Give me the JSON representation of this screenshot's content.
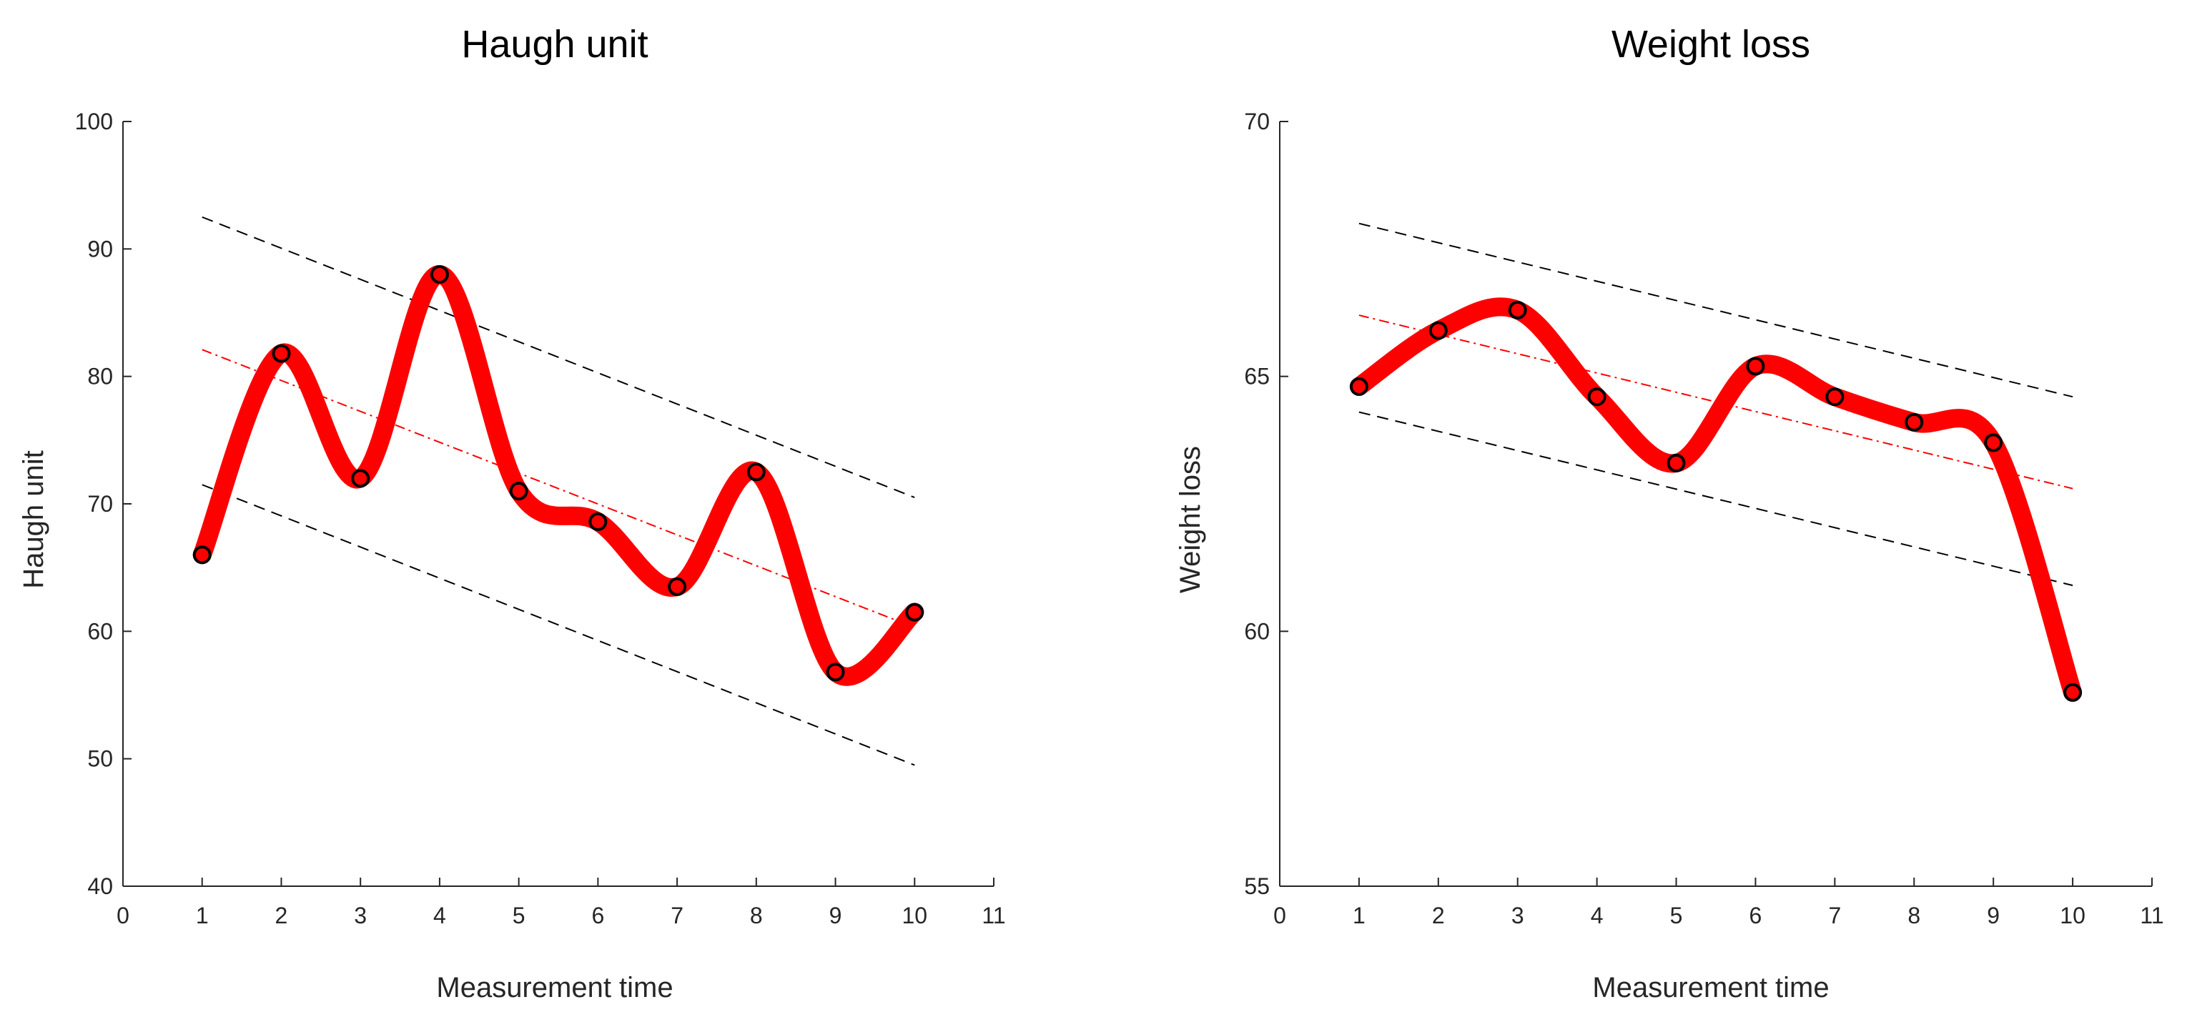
{
  "chart_data": [
    {
      "type": "line",
      "title": "Haugh unit",
      "xlabel": "Measurement time",
      "ylabel": "Haugh unit",
      "xlim": [
        0,
        11
      ],
      "ylim": [
        40,
        100
      ],
      "xticks": [
        0,
        1,
        2,
        3,
        4,
        5,
        6,
        7,
        8,
        9,
        10,
        11
      ],
      "yticks": [
        40,
        50,
        60,
        70,
        80,
        90,
        100
      ],
      "x": [
        1,
        2,
        3,
        4,
        5,
        6,
        7,
        8,
        9,
        10
      ],
      "series": [
        {
          "name": "measured",
          "values": [
            66.0,
            81.8,
            72.0,
            88.0,
            71.0,
            68.6,
            63.5,
            72.5,
            56.8,
            61.5
          ],
          "color": "#ff0000"
        }
      ],
      "fit_line": {
        "name": "linear fit",
        "x": [
          1,
          10
        ],
        "y": [
          82.1,
          60.3
        ],
        "color": "#ff0000"
      },
      "bounds": [
        {
          "name": "upper bound",
          "x": [
            1,
            10
          ],
          "y": [
            92.5,
            70.5
          ],
          "color": "#000000"
        },
        {
          "name": "lower bound",
          "x": [
            1,
            10
          ],
          "y": [
            71.5,
            49.5
          ],
          "color": "#000000"
        }
      ],
      "grid": false
    },
    {
      "type": "line",
      "title": "Weight loss",
      "xlabel": "Measurement time",
      "ylabel": "Weight loss",
      "xlim": [
        0,
        11
      ],
      "ylim": [
        55,
        70
      ],
      "xticks": [
        0,
        1,
        2,
        3,
        4,
        5,
        6,
        7,
        8,
        9,
        10,
        11
      ],
      "yticks": [
        55,
        60,
        65,
        70
      ],
      "x": [
        1,
        2,
        3,
        4,
        5,
        6,
        7,
        8,
        9,
        10
      ],
      "series": [
        {
          "name": "measured",
          "values": [
            64.8,
            65.9,
            66.3,
            64.6,
            63.3,
            65.2,
            64.6,
            64.1,
            63.7,
            58.8
          ],
          "color": "#ff0000"
        }
      ],
      "fit_line": {
        "name": "linear fit",
        "x": [
          1,
          10
        ],
        "y": [
          66.2,
          62.8
        ],
        "color": "#ff0000"
      },
      "bounds": [
        {
          "name": "upper bound",
          "x": [
            1,
            10
          ],
          "y": [
            68.0,
            64.6
          ],
          "color": "#000000"
        },
        {
          "name": "lower bound",
          "x": [
            1,
            10
          ],
          "y": [
            64.3,
            60.9
          ],
          "color": "#000000"
        }
      ],
      "grid": false
    }
  ]
}
